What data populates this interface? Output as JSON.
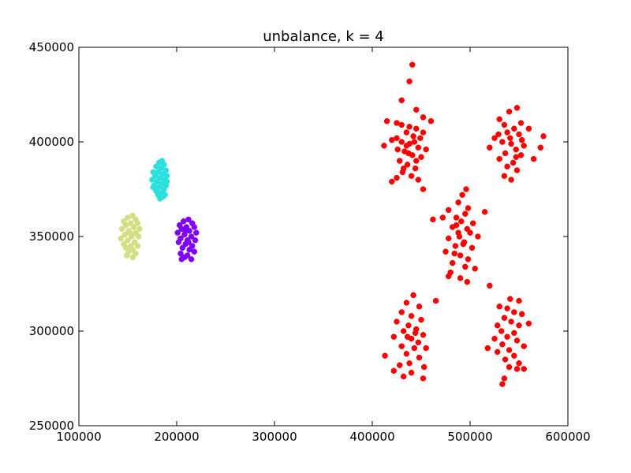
{
  "chart_data": {
    "type": "scatter",
    "title": "unbalance, k = 4",
    "xlabel": "",
    "ylabel": "",
    "xlim": [
      100000,
      600000
    ],
    "ylim": [
      250000,
      450000
    ],
    "x_ticks": [
      100000,
      200000,
      300000,
      400000,
      500000,
      600000
    ],
    "y_ticks": [
      250000,
      300000,
      350000,
      400000,
      450000
    ],
    "x_tick_labels": [
      "100000",
      "200000",
      "300000",
      "400000",
      "500000",
      "600000"
    ],
    "y_tick_labels": [
      "250000",
      "300000",
      "350000",
      "400000",
      "450000"
    ],
    "grid": false,
    "legend": "none",
    "series": [
      {
        "color": "#ff0000",
        "points": [
          [
            441000,
            440800
          ],
          [
            438000,
            432000
          ],
          [
            445000,
            417000
          ],
          [
            452000,
            413000
          ],
          [
            430000,
            422000
          ],
          [
            415000,
            411000
          ],
          [
            460000,
            411000
          ],
          [
            425000,
            410000
          ],
          [
            430000,
            409000
          ],
          [
            438000,
            408000
          ],
          [
            445000,
            407000
          ],
          [
            435000,
            405000
          ],
          [
            442000,
            403000
          ],
          [
            425000,
            402000
          ],
          [
            430000,
            400000
          ],
          [
            438000,
            399000
          ],
          [
            447000,
            397000
          ],
          [
            420000,
            401000
          ],
          [
            455000,
            396000
          ],
          [
            412000,
            398000
          ],
          [
            433000,
            395000
          ],
          [
            441000,
            393000
          ],
          [
            450000,
            392000
          ],
          [
            428000,
            390000
          ],
          [
            436000,
            388000
          ],
          [
            444000,
            386000
          ],
          [
            431000,
            384000
          ],
          [
            440000,
            382000
          ],
          [
            425000,
            381000
          ],
          [
            447000,
            380000
          ],
          [
            420000,
            379000
          ],
          [
            452000,
            375000
          ],
          [
            435000,
            398000
          ],
          [
            443000,
            400000
          ],
          [
            449000,
            402000
          ],
          [
            426000,
            396000
          ],
          [
            452000,
            405000
          ],
          [
            437000,
            394000
          ],
          [
            445000,
            390000
          ],
          [
            432000,
            386000
          ],
          [
            548000,
            418000
          ],
          [
            540000,
            416000
          ],
          [
            530000,
            412000
          ],
          [
            552000,
            410000
          ],
          [
            535000,
            409000
          ],
          [
            545000,
            407000
          ],
          [
            560000,
            407000
          ],
          [
            538000,
            405000
          ],
          [
            550000,
            404000
          ],
          [
            525000,
            402000
          ],
          [
            575000,
            403000
          ],
          [
            533000,
            400000
          ],
          [
            542000,
            399000
          ],
          [
            555000,
            398000
          ],
          [
            520000,
            397000
          ],
          [
            547000,
            396000
          ],
          [
            572000,
            397000
          ],
          [
            536000,
            394000
          ],
          [
            552000,
            393000
          ],
          [
            530000,
            391000
          ],
          [
            565000,
            391000
          ],
          [
            544000,
            389000
          ],
          [
            538000,
            387000
          ],
          [
            548000,
            385000
          ],
          [
            535000,
            382000
          ],
          [
            542000,
            380000
          ],
          [
            541000,
            402000
          ],
          [
            529000,
            404000
          ],
          [
            553000,
            401000
          ],
          [
            547000,
            392000
          ],
          [
            496000,
            375000
          ],
          [
            492000,
            372000
          ],
          [
            488000,
            368000
          ],
          [
            498000,
            365000
          ],
          [
            478000,
            364000
          ],
          [
            495000,
            362000
          ],
          [
            472000,
            360000
          ],
          [
            486000,
            360000
          ],
          [
            515000,
            363000
          ],
          [
            462000,
            359000
          ],
          [
            491000,
            358000
          ],
          [
            503000,
            357000
          ],
          [
            482000,
            355000
          ],
          [
            497000,
            354000
          ],
          [
            488000,
            352000
          ],
          [
            508000,
            350000
          ],
          [
            478000,
            349000
          ],
          [
            494000,
            347000
          ],
          [
            485000,
            345000
          ],
          [
            502000,
            344000
          ],
          [
            475000,
            342000
          ],
          [
            490000,
            340000
          ],
          [
            498000,
            338000
          ],
          [
            482000,
            336000
          ],
          [
            495000,
            334000
          ],
          [
            505000,
            333000
          ],
          [
            480000,
            331000
          ],
          [
            490000,
            328000
          ],
          [
            497000,
            326000
          ],
          [
            478000,
            329000
          ],
          [
            489000,
            350000
          ],
          [
            493000,
            346000
          ],
          [
            486000,
            356000
          ],
          [
            500000,
            352000
          ],
          [
            484000,
            341000
          ],
          [
            442000,
            319000
          ],
          [
            435000,
            315000
          ],
          [
            448000,
            313000
          ],
          [
            465000,
            316000
          ],
          [
            430000,
            310000
          ],
          [
            440000,
            308000
          ],
          [
            450000,
            306000
          ],
          [
            425000,
            305000
          ],
          [
            437000,
            303000
          ],
          [
            445000,
            301000
          ],
          [
            432000,
            300000
          ],
          [
            452000,
            298000
          ],
          [
            422000,
            297000
          ],
          [
            440000,
            296000
          ],
          [
            447000,
            294000
          ],
          [
            430000,
            292000
          ],
          [
            443000,
            291000
          ],
          [
            455000,
            291000
          ],
          [
            435000,
            288000
          ],
          [
            413000,
            287000
          ],
          [
            448000,
            286000
          ],
          [
            438000,
            283000
          ],
          [
            428000,
            282000
          ],
          [
            453000,
            281000
          ],
          [
            422000,
            279000
          ],
          [
            440000,
            278000
          ],
          [
            432000,
            276000
          ],
          [
            452000,
            275000
          ],
          [
            444000,
            299000
          ],
          [
            436000,
            297000
          ],
          [
            541000,
            317000
          ],
          [
            550000,
            316000
          ],
          [
            530000,
            313000
          ],
          [
            538000,
            312000
          ],
          [
            545000,
            310000
          ],
          [
            520000,
            324000
          ],
          [
            553000,
            309000
          ],
          [
            535000,
            307000
          ],
          [
            542000,
            305000
          ],
          [
            528000,
            303000
          ],
          [
            550000,
            303000
          ],
          [
            560000,
            304000
          ],
          [
            532000,
            300000
          ],
          [
            545000,
            299000
          ],
          [
            538000,
            297000
          ],
          [
            525000,
            296000
          ],
          [
            548000,
            295000
          ],
          [
            533000,
            293000
          ],
          [
            555000,
            292000
          ],
          [
            540000,
            290000
          ],
          [
            528000,
            289000
          ],
          [
            545000,
            287000
          ],
          [
            536000,
            285000
          ],
          [
            518000,
            291000
          ],
          [
            550000,
            283000
          ],
          [
            540000,
            281000
          ],
          [
            548000,
            280000
          ],
          [
            555000,
            280000
          ],
          [
            535000,
            275000
          ],
          [
            533000,
            272000
          ]
        ]
      },
      {
        "color": "#2ae0dd",
        "points": [
          [
            185000,
            390000
          ],
          [
            182000,
            389000
          ],
          [
            187000,
            388000
          ],
          [
            179000,
            387000
          ],
          [
            184000,
            386000
          ],
          [
            189000,
            385000
          ],
          [
            176000,
            384000
          ],
          [
            181000,
            384000
          ],
          [
            186000,
            383000
          ],
          [
            190000,
            382000
          ],
          [
            178000,
            382000
          ],
          [
            183000,
            381000
          ],
          [
            188000,
            380000
          ],
          [
            175000,
            380000
          ],
          [
            180000,
            379000
          ],
          [
            185000,
            378000
          ],
          [
            189000,
            377000
          ],
          [
            177000,
            377000
          ],
          [
            182000,
            376000
          ],
          [
            187000,
            375000
          ],
          [
            179000,
            374000
          ],
          [
            184000,
            373000
          ],
          [
            188000,
            372000
          ],
          [
            181000,
            372000
          ],
          [
            186000,
            371000
          ],
          [
            183000,
            370000
          ],
          [
            190000,
            379000
          ],
          [
            176000,
            376000
          ]
        ]
      },
      {
        "color": "#d4df83",
        "points": [
          [
            155000,
            361000
          ],
          [
            150000,
            360000
          ],
          [
            158000,
            359000
          ],
          [
            146000,
            358000
          ],
          [
            153000,
            357000
          ],
          [
            160000,
            357000
          ],
          [
            148000,
            356000
          ],
          [
            156000,
            355000
          ],
          [
            162000,
            354000
          ],
          [
            144000,
            354000
          ],
          [
            151000,
            353000
          ],
          [
            158000,
            352000
          ],
          [
            147000,
            351000
          ],
          [
            154000,
            350000
          ],
          [
            161000,
            350000
          ],
          [
            143000,
            349000
          ],
          [
            150000,
            348000
          ],
          [
            157000,
            347000
          ],
          [
            146000,
            346000
          ],
          [
            153000,
            345000
          ],
          [
            160000,
            345000
          ],
          [
            148000,
            344000
          ],
          [
            155000,
            343000
          ],
          [
            151000,
            342000
          ],
          [
            158000,
            341000
          ],
          [
            149000,
            340000
          ],
          [
            155000,
            339000
          ],
          [
            152000,
            352000
          ]
        ]
      },
      {
        "color": "#8000ff",
        "points": [
          [
            212000,
            359000
          ],
          [
            207000,
            358000
          ],
          [
            216000,
            357000
          ],
          [
            203000,
            356000
          ],
          [
            210000,
            355000
          ],
          [
            218000,
            355000
          ],
          [
            205000,
            354000
          ],
          [
            213000,
            353000
          ],
          [
            220000,
            352000
          ],
          [
            201000,
            352000
          ],
          [
            208000,
            351000
          ],
          [
            215000,
            350000
          ],
          [
            204000,
            349000
          ],
          [
            211000,
            348000
          ],
          [
            219000,
            348000
          ],
          [
            202000,
            347000
          ],
          [
            209000,
            346000
          ],
          [
            216000,
            345000
          ],
          [
            206000,
            344000
          ],
          [
            213000,
            343000
          ],
          [
            218000,
            342000
          ],
          [
            204000,
            341000
          ],
          [
            211000,
            340000
          ],
          [
            208000,
            339000
          ],
          [
            215000,
            338000
          ],
          [
            205000,
            338000
          ],
          [
            212000,
            347000
          ],
          [
            209000,
            353000
          ]
        ]
      }
    ]
  }
}
